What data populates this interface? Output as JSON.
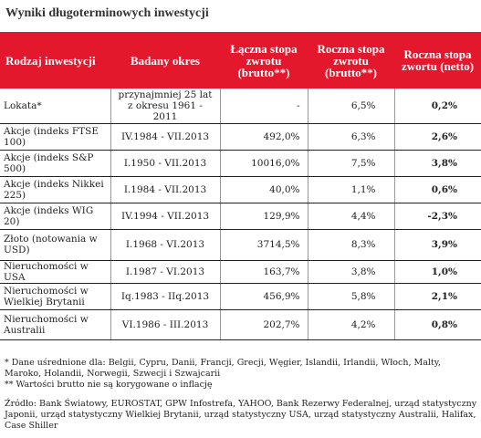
{
  "title": "Wyniki długoterminowych inwestycji",
  "headers": {
    "type": "Rodzaj inwestycji",
    "period": "Badany okres",
    "total": "Łączna stopa zwrotu (brutto**)",
    "annual_gross": "Roczna stopa zwrotu (brutto**)",
    "annual_net": "Roczna stopa zwortu (netto)"
  },
  "rows": [
    {
      "name": "Lokata*",
      "period": "przynajmniej 25 lat z okresu 1961 - 2011",
      "total": "-",
      "annual_gross": "6,5%",
      "annual_net": "0,2%"
    },
    {
      "name": "Akcje (indeks FTSE 100)",
      "period": "IV.1984 - VII.2013",
      "total": "492,0%",
      "annual_gross": "6,3%",
      "annual_net": "2,6%"
    },
    {
      "name": "Akcje (indeks S&P 500)",
      "period": "I.1950 - VII.2013",
      "total": "10016,0%",
      "annual_gross": "7,5%",
      "annual_net": "3,8%"
    },
    {
      "name": "Akcje (indeks Nikkei 225)",
      "period": "I.1984 - VII.2013",
      "total": "40,0%",
      "annual_gross": "1,1%",
      "annual_net": "0,6%"
    },
    {
      "name": "Akcje (indeks WIG 20)",
      "period": "IV.1994 - VII.2013",
      "total": "129,9%",
      "annual_gross": "4,4%",
      "annual_net": "-2,3%"
    },
    {
      "name": "Złoto (notowania w USD)",
      "period": "I.1968 - VI.2013",
      "total": "3714,5%",
      "annual_gross": "8,3%",
      "annual_net": "3,9%"
    },
    {
      "name": "Nieruchomości w USA",
      "period": "I.1987 - VI.2013",
      "total": "163,7%",
      "annual_gross": "3,8%",
      "annual_net": "1,0%"
    },
    {
      "name": "Nieruchomości w Wielkiej Brytanii",
      "period": "Iq.1983 - IIq.2013",
      "total": "456,9%",
      "annual_gross": "5,8%",
      "annual_net": "2,1%"
    },
    {
      "name": "Nieruchomości w Australii",
      "period": "VI.1986 - III.2013",
      "total": "202,7%",
      "annual_gross": "4,2%",
      "annual_net": "0,8%"
    }
  ],
  "notes": {
    "note1": "* Dane uśrednione dla: Belgii, Cypru, Danii, Francji, Grecji, Węgier, Islandii, Irlandii, Włoch, Malty, Maroko, Holandii, Norwegii, Szwecji i Szwajcarii",
    "note2": "** Wartości brutto nie są korygowane o inflację",
    "sources": "Źródło: Bank Światowy, EUROSTAT, GPW Infostrefa, YAHOO, Bank Rezerwy Federalnej, urząd statystyczny Japonii, urząd statystyczny Wielkiej Brytanii, urząd statystyczny USA, urząd statystyczny Australii, Halifax, Case Shiller"
  }
}
